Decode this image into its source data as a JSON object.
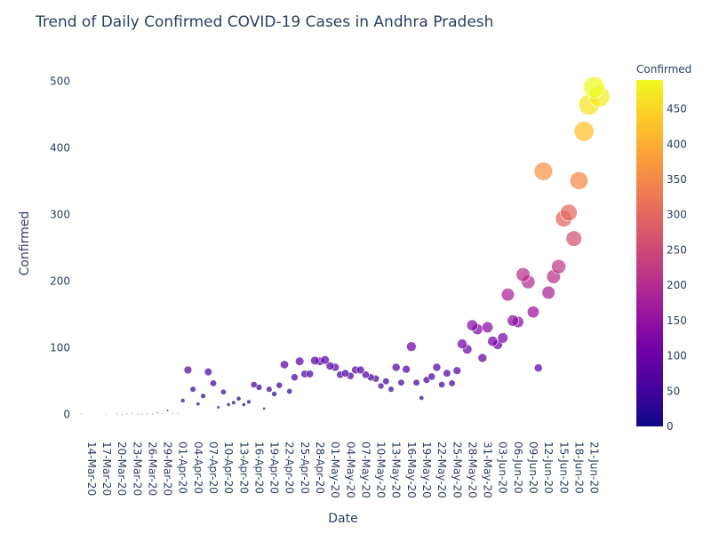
{
  "chart_data": {
    "type": "scatter",
    "title": "Trend of Daily Confirmed COVID-19 Cases in Andhra Pradesh",
    "xlabel": "Date",
    "ylabel": "Confirmed",
    "x_tick_labels": [
      "14-Mar-20",
      "17-Mar-20",
      "20-Mar-20",
      "23-Mar-20",
      "26-Mar-20",
      "29-Mar-20",
      "01-Apr-20",
      "04-Apr-20",
      "07-Apr-20",
      "10-Apr-20",
      "13-Apr-20",
      "16-Apr-20",
      "19-Apr-20",
      "22-Apr-20",
      "25-Apr-20",
      "28-Apr-20",
      "01-May-20",
      "04-May-20",
      "07-May-20",
      "10-May-20",
      "13-May-20",
      "16-May-20",
      "19-May-20",
      "22-May-20",
      "25-May-20",
      "28-May-20",
      "31-May-20",
      "03-Jun-20",
      "06-Jun-20",
      "09-Jun-20",
      "12-Jun-20",
      "15-Jun-20",
      "18-Jun-20",
      "21-Jun-20"
    ],
    "y_ticks": [
      0,
      100,
      200,
      300,
      400,
      500
    ],
    "ylim": [
      -27,
      542
    ],
    "xlim": [
      "2020-03-10",
      "2020-06-23"
    ],
    "colorbar": {
      "title": "Confirmed",
      "ticks": [
        0,
        50,
        100,
        150,
        200,
        250,
        300,
        350,
        400,
        450
      ],
      "range": [
        0,
        491
      ],
      "colors": [
        "#0d0887",
        "#46039f",
        "#7201a8",
        "#9c179e",
        "#bd3786",
        "#d8576b",
        "#ed7953",
        "#fb9f3a",
        "#fdca26",
        "#f0f921"
      ]
    },
    "marker_size_encodes": "Confirmed",
    "grid": false,
    "points": [
      {
        "x": "2020-03-12",
        "y": 1
      },
      {
        "x": "2020-03-17",
        "y": 1
      },
      {
        "x": "2020-03-19",
        "y": 1
      },
      {
        "x": "2020-03-20",
        "y": 0
      },
      {
        "x": "2020-03-21",
        "y": 1
      },
      {
        "x": "2020-03-22",
        "y": 2
      },
      {
        "x": "2020-03-23",
        "y": 1
      },
      {
        "x": "2020-03-24",
        "y": 1
      },
      {
        "x": "2020-03-25",
        "y": 2
      },
      {
        "x": "2020-03-26",
        "y": 1
      },
      {
        "x": "2020-03-27",
        "y": 3
      },
      {
        "x": "2020-03-28",
        "y": 2
      },
      {
        "x": "2020-03-29",
        "y": 6
      },
      {
        "x": "2020-03-30",
        "y": 2
      },
      {
        "x": "2020-03-31",
        "y": 2
      },
      {
        "x": "2020-04-01",
        "y": 21
      },
      {
        "x": "2020-04-02",
        "y": 67
      },
      {
        "x": "2020-04-03",
        "y": 38
      },
      {
        "x": "2020-04-04",
        "y": 16
      },
      {
        "x": "2020-04-05",
        "y": 28
      },
      {
        "x": "2020-04-06",
        "y": 64
      },
      {
        "x": "2020-04-07",
        "y": 47
      },
      {
        "x": "2020-04-08",
        "y": 11
      },
      {
        "x": "2020-04-09",
        "y": 34
      },
      {
        "x": "2020-04-10",
        "y": 15
      },
      {
        "x": "2020-04-11",
        "y": 18
      },
      {
        "x": "2020-04-12",
        "y": 24
      },
      {
        "x": "2020-04-13",
        "y": 15
      },
      {
        "x": "2020-04-14",
        "y": 19
      },
      {
        "x": "2020-04-15",
        "y": 45
      },
      {
        "x": "2020-04-16",
        "y": 41
      },
      {
        "x": "2020-04-17",
        "y": 9
      },
      {
        "x": "2020-04-18",
        "y": 38
      },
      {
        "x": "2020-04-19",
        "y": 31
      },
      {
        "x": "2020-04-20",
        "y": 44
      },
      {
        "x": "2020-04-21",
        "y": 75
      },
      {
        "x": "2020-04-22",
        "y": 35
      },
      {
        "x": "2020-04-23",
        "y": 56
      },
      {
        "x": "2020-04-24",
        "y": 80
      },
      {
        "x": "2020-04-25",
        "y": 61
      },
      {
        "x": "2020-04-26",
        "y": 61
      },
      {
        "x": "2020-04-27",
        "y": 81
      },
      {
        "x": "2020-04-28",
        "y": 80
      },
      {
        "x": "2020-04-29",
        "y": 82
      },
      {
        "x": "2020-04-30",
        "y": 73
      },
      {
        "x": "2020-05-01",
        "y": 71
      },
      {
        "x": "2020-05-02",
        "y": 60
      },
      {
        "x": "2020-05-03",
        "y": 62
      },
      {
        "x": "2020-05-04",
        "y": 58
      },
      {
        "x": "2020-05-05",
        "y": 67
      },
      {
        "x": "2020-05-06",
        "y": 67
      },
      {
        "x": "2020-05-07",
        "y": 60
      },
      {
        "x": "2020-05-08",
        "y": 56
      },
      {
        "x": "2020-05-09",
        "y": 54
      },
      {
        "x": "2020-05-10",
        "y": 43
      },
      {
        "x": "2020-05-11",
        "y": 50
      },
      {
        "x": "2020-05-12",
        "y": 38
      },
      {
        "x": "2020-05-13",
        "y": 71
      },
      {
        "x": "2020-05-14",
        "y": 48
      },
      {
        "x": "2020-05-15",
        "y": 68
      },
      {
        "x": "2020-05-16",
        "y": 102
      },
      {
        "x": "2020-05-17",
        "y": 48
      },
      {
        "x": "2020-05-18",
        "y": 25
      },
      {
        "x": "2020-05-19",
        "y": 52
      },
      {
        "x": "2020-05-20",
        "y": 57
      },
      {
        "x": "2020-05-21",
        "y": 71
      },
      {
        "x": "2020-05-22",
        "y": 45
      },
      {
        "x": "2020-05-23",
        "y": 62
      },
      {
        "x": "2020-05-24",
        "y": 47
      },
      {
        "x": "2020-05-25",
        "y": 66
      },
      {
        "x": "2020-05-26",
        "y": 106
      },
      {
        "x": "2020-05-27",
        "y": 98
      },
      {
        "x": "2020-05-28",
        "y": 134
      },
      {
        "x": "2020-05-29",
        "y": 128
      },
      {
        "x": "2020-05-30",
        "y": 85
      },
      {
        "x": "2020-05-31",
        "y": 131
      },
      {
        "x": "2020-06-01",
        "y": 110
      },
      {
        "x": "2020-06-02",
        "y": 105
      },
      {
        "x": "2020-06-03",
        "y": 115
      },
      {
        "x": "2020-06-04",
        "y": 180
      },
      {
        "x": "2020-06-05",
        "y": 141
      },
      {
        "x": "2020-06-06",
        "y": 139
      },
      {
        "x": "2020-06-07",
        "y": 210
      },
      {
        "x": "2020-06-08",
        "y": 199
      },
      {
        "x": "2020-06-09",
        "y": 154
      },
      {
        "x": "2020-06-10",
        "y": 70
      },
      {
        "x": "2020-06-11",
        "y": 365
      },
      {
        "x": "2020-06-12",
        "y": 183
      },
      {
        "x": "2020-06-13",
        "y": 207
      },
      {
        "x": "2020-06-14",
        "y": 222
      },
      {
        "x": "2020-06-15",
        "y": 294
      },
      {
        "x": "2020-06-16",
        "y": 303
      },
      {
        "x": "2020-06-17",
        "y": 264
      },
      {
        "x": "2020-06-18",
        "y": 351
      },
      {
        "x": "2020-06-19",
        "y": 425
      },
      {
        "x": "2020-06-20",
        "y": 465
      },
      {
        "x": "2020-06-21",
        "y": 491
      },
      {
        "x": "2020-06-22",
        "y": 477
      }
    ]
  }
}
